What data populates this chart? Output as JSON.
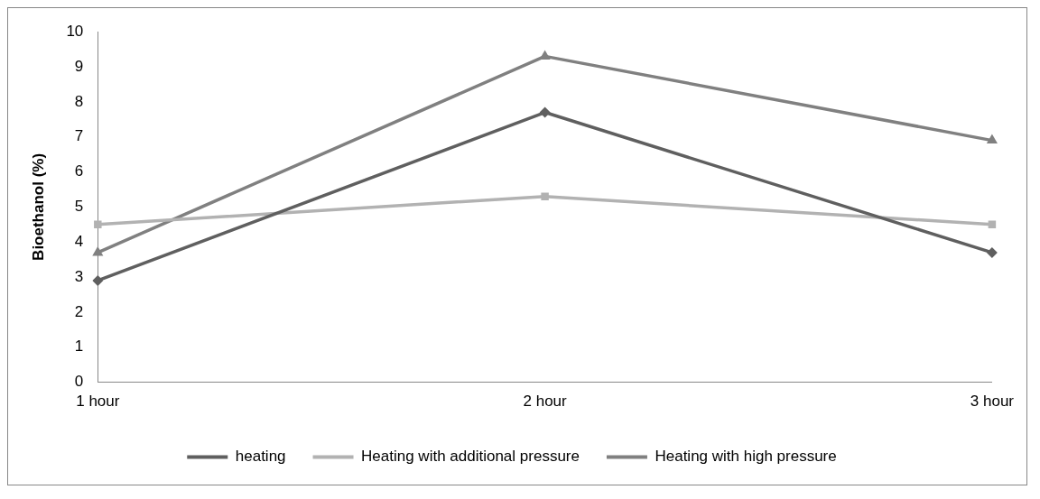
{
  "chart_data": {
    "type": "line",
    "ylabel": "Bioethanol (%)",
    "categories": [
      "1 hour",
      "2 hour",
      "3 hour"
    ],
    "series": [
      {
        "name": "heating",
        "color": "#5f5f5f",
        "marker": "diamond",
        "values": [
          2.9,
          7.7,
          3.7
        ]
      },
      {
        "name": "Heating with additional pressure",
        "color": "#b2b2b2",
        "marker": "square",
        "values": [
          4.5,
          5.3,
          4.5
        ]
      },
      {
        "name": "Heating with high pressure",
        "color": "#808080",
        "marker": "triangle",
        "values": [
          3.7,
          9.3,
          6.9
        ]
      }
    ],
    "ylim": [
      0,
      10
    ],
    "yticks": [
      0,
      1,
      2,
      3,
      4,
      5,
      6,
      7,
      8,
      9,
      10
    ],
    "grid": false,
    "legend": "bottom"
  }
}
